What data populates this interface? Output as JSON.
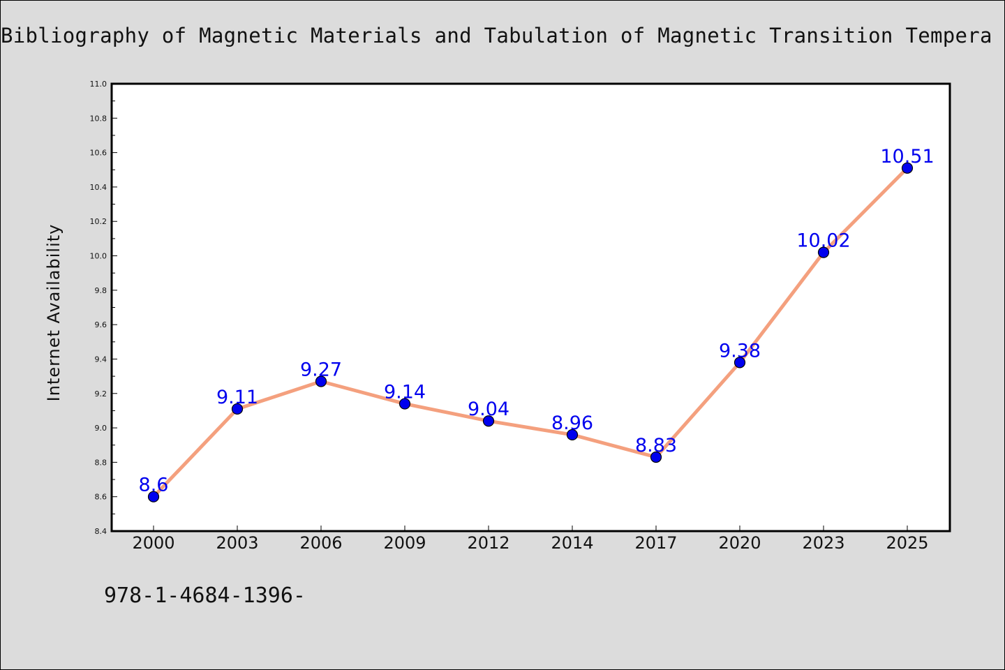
{
  "footer_text": "978-1-4684-1396-",
  "chart_data": {
    "type": "line",
    "title": "Bibliography of Magnetic Materials and Tabulation of Magnetic Transition Tempera",
    "xlabel": "",
    "ylabel": "Internet Availability",
    "categories": [
      "2000",
      "2003",
      "2006",
      "2009",
      "2012",
      "2014",
      "2017",
      "2020",
      "2023",
      "2025"
    ],
    "series": [
      {
        "values": [
          8.6,
          9.11,
          9.27,
          9.14,
          9.04,
          8.96,
          8.83,
          9.38,
          10.02,
          10.51
        ],
        "labels": [
          "8.6",
          "9.11",
          "9.27",
          "9.14",
          "9.04",
          "8.96",
          "8.83",
          "9.38",
          "10.02",
          "10.51"
        ]
      }
    ],
    "ylim": [
      8.4,
      11.0
    ],
    "yticks": [
      "8.4",
      "8.6",
      "8.8",
      "9.0",
      "9.2",
      "9.4",
      "9.6",
      "9.8",
      "10.0",
      "10.2",
      "10.4",
      "10.6",
      "10.8",
      "11.0"
    ],
    "grid": false,
    "colors": {
      "line": "#f4a07e",
      "marker": "#0000ee",
      "label": "#0000ee",
      "background": "#dcdcdc",
      "plot_background": "#ffffff"
    }
  }
}
